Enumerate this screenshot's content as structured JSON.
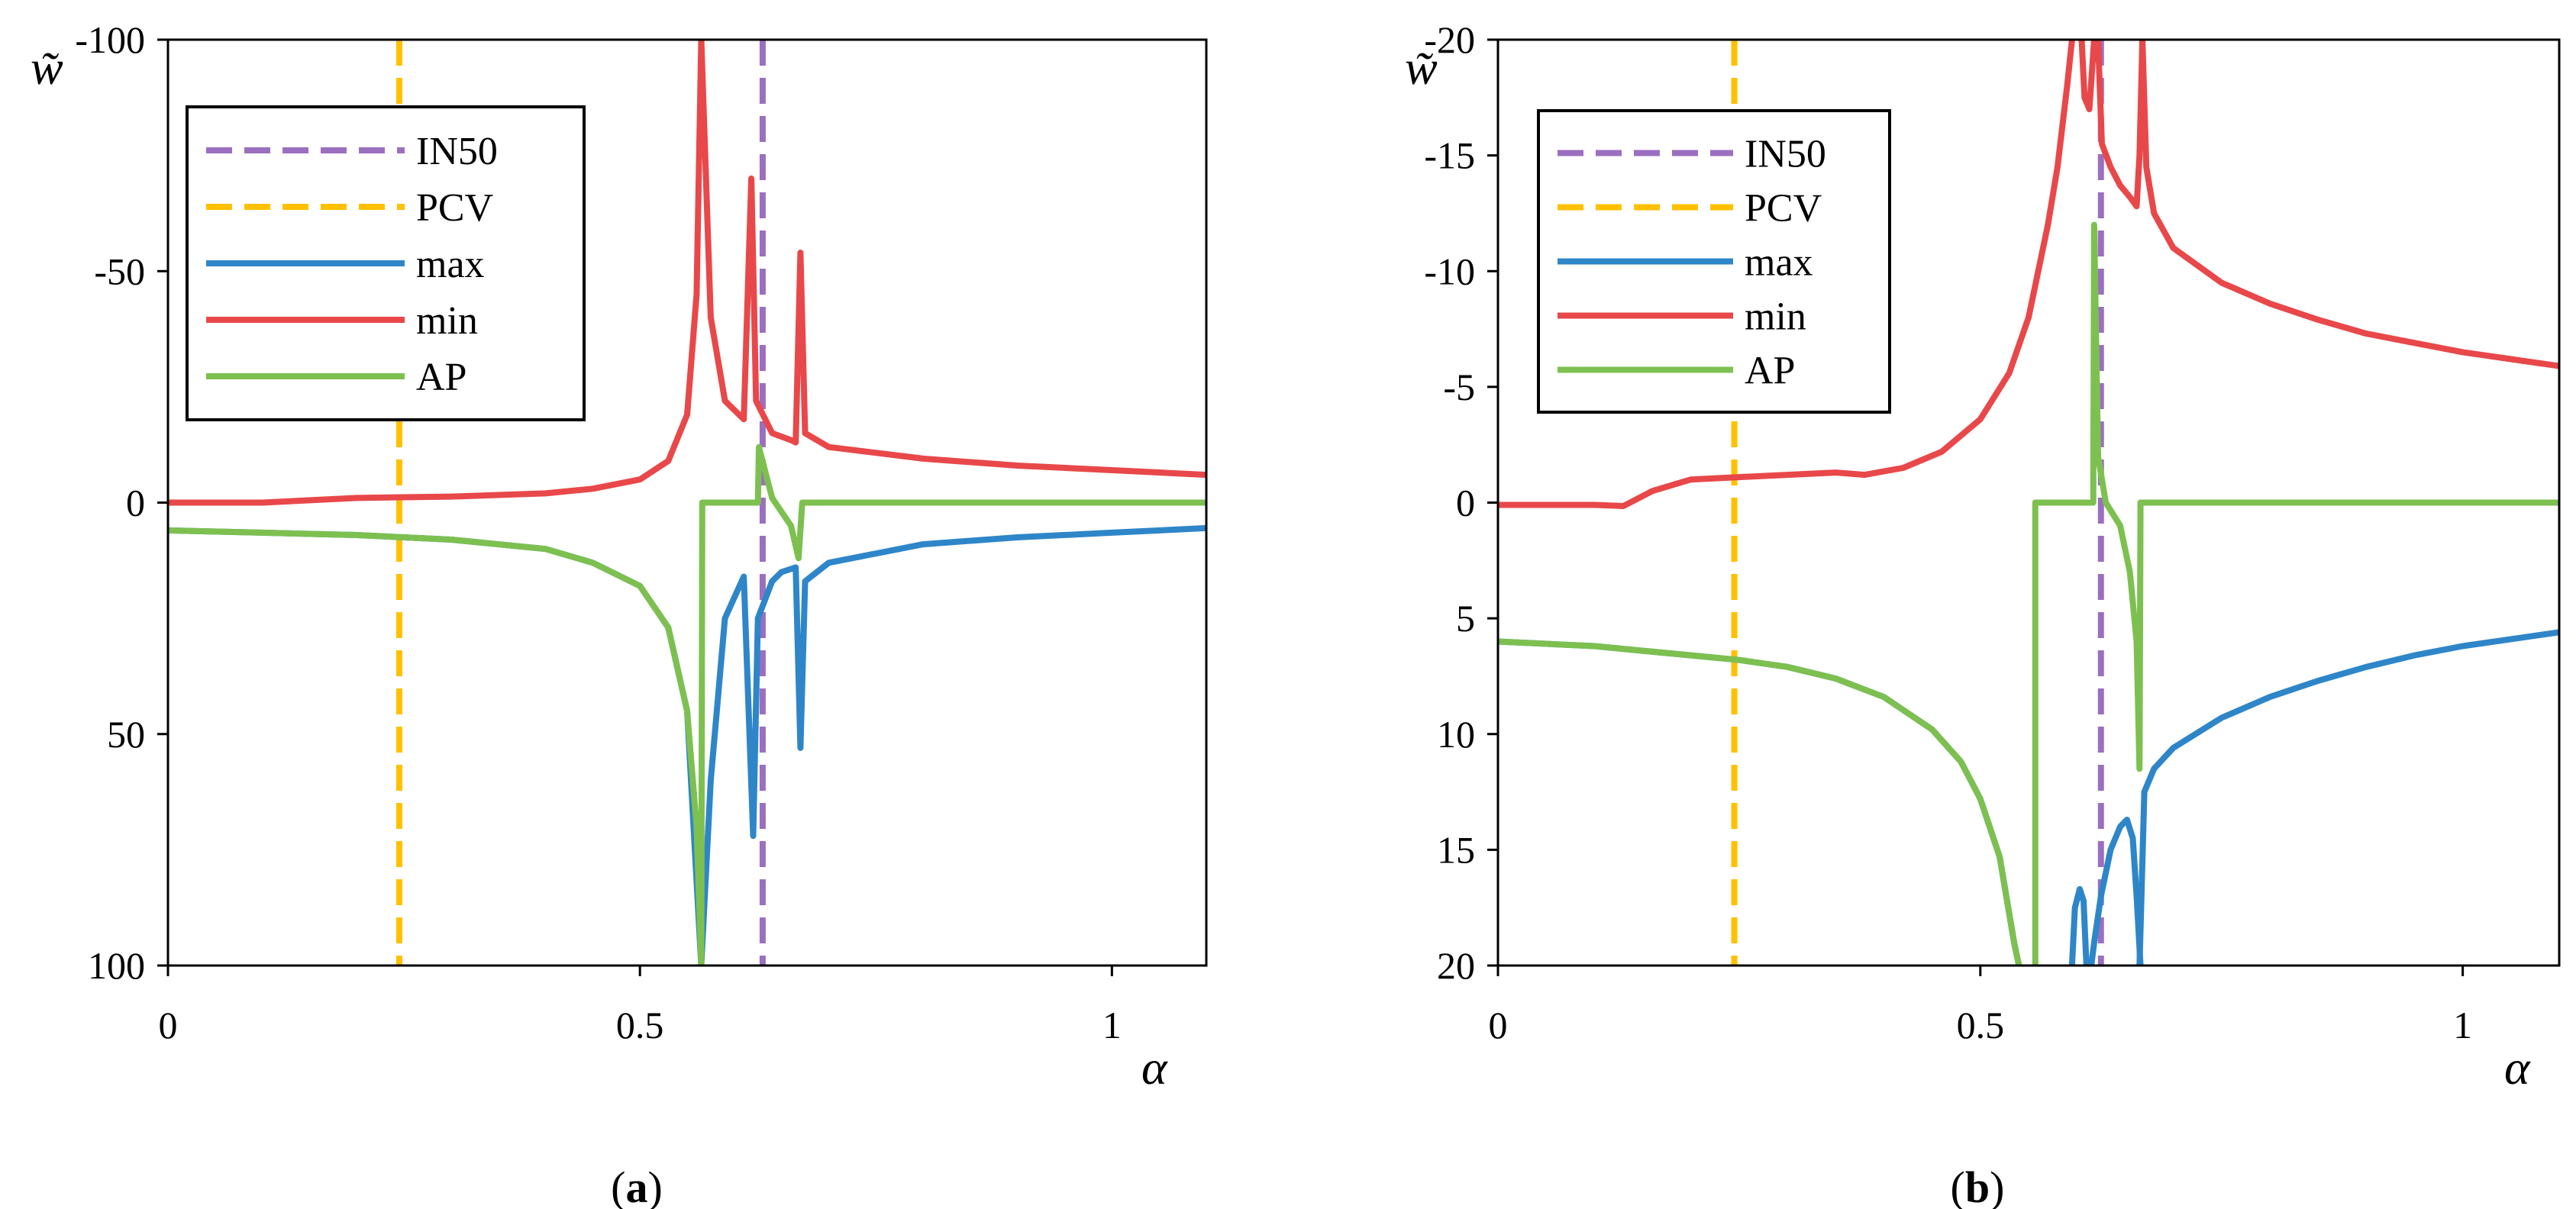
{
  "colors": {
    "IN50": "#9B6FC0",
    "PCV": "#FFC000",
    "max": "#2E86C9",
    "min": "#E8484A",
    "AP": "#7DC050"
  },
  "chart_data": [
    {
      "type": "line",
      "caption_open": "(",
      "caption_letter": "a",
      "caption_close": ")",
      "xlabel": "α",
      "ylabel": "w̃",
      "xlim": [
        0,
        1.1
      ],
      "ylim": [
        -100,
        100
      ],
      "y_inverted": true,
      "xticks": [
        0,
        0.5,
        1
      ],
      "xtick_labels": [
        "0",
        "0.5",
        "1"
      ],
      "yticks": [
        -100,
        -50,
        0,
        50,
        100
      ],
      "ytick_labels": [
        "-100",
        "-50",
        "0",
        "50",
        "100"
      ],
      "legend": [
        "IN50",
        "PCV",
        "max",
        "min",
        "AP"
      ],
      "legend_position": "top-left",
      "vlines": [
        {
          "name": "IN50",
          "x": 0.63
        },
        {
          "name": "PCV",
          "x": 0.245
        }
      ],
      "series": [
        {
          "name": "max",
          "points": [
            [
              0,
              6
            ],
            [
              0.1,
              6.5
            ],
            [
              0.2,
              7
            ],
            [
              0.3,
              8
            ],
            [
              0.4,
              10
            ],
            [
              0.45,
              13
            ],
            [
              0.5,
              18
            ],
            [
              0.53,
              27
            ],
            [
              0.55,
              45
            ],
            [
              0.565,
              100
            ],
            [
              0.575,
              60
            ],
            [
              0.59,
              25
            ],
            [
              0.61,
              16
            ],
            [
              0.62,
              72
            ],
            [
              0.625,
              25
            ],
            [
              0.64,
              17
            ],
            [
              0.65,
              15
            ],
            [
              0.665,
              14
            ],
            [
              0.67,
              53
            ],
            [
              0.675,
              17
            ],
            [
              0.7,
              13
            ],
            [
              0.8,
              9
            ],
            [
              0.9,
              7.5
            ],
            [
              1.0,
              6.5
            ],
            [
              1.1,
              5.5
            ]
          ]
        },
        {
          "name": "min",
          "points": [
            [
              0,
              0
            ],
            [
              0.1,
              0
            ],
            [
              0.2,
              -1
            ],
            [
              0.3,
              -1.3
            ],
            [
              0.4,
              -2
            ],
            [
              0.45,
              -3
            ],
            [
              0.5,
              -5
            ],
            [
              0.53,
              -9
            ],
            [
              0.55,
              -19
            ],
            [
              0.56,
              -45
            ],
            [
              0.565,
              -100
            ],
            [
              0.575,
              -40
            ],
            [
              0.59,
              -22
            ],
            [
              0.61,
              -18
            ],
            [
              0.618,
              -70
            ],
            [
              0.623,
              -22
            ],
            [
              0.64,
              -15
            ],
            [
              0.66,
              -13.5
            ],
            [
              0.665,
              -13
            ],
            [
              0.67,
              -54
            ],
            [
              0.675,
              -15
            ],
            [
              0.7,
              -12
            ],
            [
              0.8,
              -9.5
            ],
            [
              0.9,
              -8
            ],
            [
              1.0,
              -7
            ],
            [
              1.1,
              -6
            ]
          ]
        },
        {
          "name": "AP",
          "points": [
            [
              0,
              6
            ],
            [
              0.1,
              6.5
            ],
            [
              0.2,
              7
            ],
            [
              0.3,
              8
            ],
            [
              0.4,
              10
            ],
            [
              0.45,
              13
            ],
            [
              0.5,
              18
            ],
            [
              0.53,
              27
            ],
            [
              0.55,
              45
            ],
            [
              0.56,
              70
            ],
            [
              0.565,
              100
            ],
            [
              0.566,
              0
            ],
            [
              0.625,
              0
            ],
            [
              0.626,
              -12
            ],
            [
              0.64,
              -1
            ],
            [
              0.66,
              5
            ],
            [
              0.668,
              12
            ],
            [
              0.672,
              0
            ],
            [
              1.1,
              0
            ]
          ]
        }
      ]
    },
    {
      "type": "line",
      "caption_open": "(",
      "caption_letter": "b",
      "caption_close": ")",
      "xlabel": "α",
      "ylabel": "w̃",
      "xlim": [
        0,
        1.1
      ],
      "ylim": [
        -20,
        20
      ],
      "y_inverted": true,
      "xticks": [
        0,
        0.5,
        1
      ],
      "xtick_labels": [
        "0",
        "0.5",
        "1"
      ],
      "yticks": [
        -20,
        -15,
        -10,
        -5,
        0,
        5,
        10,
        15,
        20
      ],
      "ytick_labels": [
        "-20",
        "-15",
        "-10",
        "-5",
        "0",
        "5",
        "10",
        "15",
        "20"
      ],
      "legend": [
        "IN50",
        "PCV",
        "max",
        "min",
        "AP"
      ],
      "legend_position": "top-left",
      "vlines": [
        {
          "name": "IN50",
          "x": 0.625
        },
        {
          "name": "PCV",
          "x": 0.245
        }
      ],
      "series": [
        {
          "name": "max",
          "points": [
            [
              0,
              6
            ],
            [
              0.05,
              6.1
            ],
            [
              0.1,
              6.2
            ],
            [
              0.15,
              6.4
            ],
            [
              0.2,
              6.6
            ],
            [
              0.25,
              6.8
            ],
            [
              0.3,
              7.1
            ],
            [
              0.35,
              7.6
            ],
            [
              0.4,
              8.4
            ],
            [
              0.45,
              9.8
            ],
            [
              0.48,
              11.2
            ],
            [
              0.5,
              12.8
            ],
            [
              0.52,
              15.3
            ],
            [
              0.535,
              19
            ],
            [
              0.54,
              20
            ]
          ]
        },
        {
          "name": "max",
          "points": [
            [
              0.595,
              20
            ],
            [
              0.598,
              17.5
            ],
            [
              0.603,
              16.7
            ],
            [
              0.607,
              17.2
            ],
            [
              0.61,
              20
            ]
          ]
        },
        {
          "name": "max",
          "points": [
            [
              0.615,
              20
            ],
            [
              0.618,
              19
            ],
            [
              0.625,
              17
            ],
            [
              0.635,
              15
            ],
            [
              0.645,
              14
            ],
            [
              0.652,
              13.7
            ],
            [
              0.658,
              14.5
            ],
            [
              0.662,
              17
            ],
            [
              0.666,
              20
            ]
          ]
        },
        {
          "name": "max",
          "points": [
            [
              0.665,
              20
            ],
            [
              0.67,
              12.5
            ],
            [
              0.68,
              11.5
            ],
            [
              0.7,
              10.6
            ],
            [
              0.75,
              9.3
            ],
            [
              0.8,
              8.4
            ],
            [
              0.85,
              7.7
            ],
            [
              0.9,
              7.1
            ],
            [
              0.95,
              6.6
            ],
            [
              1.0,
              6.2
            ],
            [
              1.05,
              5.9
            ],
            [
              1.1,
              5.6
            ]
          ]
        },
        {
          "name": "min",
          "points": [
            [
              0,
              0.1
            ],
            [
              0.1,
              0.1
            ],
            [
              0.13,
              0.15
            ],
            [
              0.16,
              -0.5
            ],
            [
              0.2,
              -1.0
            ],
            [
              0.25,
              -1.1
            ],
            [
              0.3,
              -1.2
            ],
            [
              0.35,
              -1.3
            ],
            [
              0.38,
              -1.2
            ],
            [
              0.42,
              -1.5
            ],
            [
              0.46,
              -2.2
            ],
            [
              0.5,
              -3.6
            ],
            [
              0.53,
              -5.6
            ],
            [
              0.55,
              -8
            ],
            [
              0.57,
              -12
            ],
            [
              0.58,
              -14.5
            ],
            [
              0.59,
              -18
            ],
            [
              0.595,
              -20
            ]
          ]
        },
        {
          "name": "min",
          "points": [
            [
              0.605,
              -20
            ],
            [
              0.608,
              -17.5
            ],
            [
              0.613,
              -17
            ],
            [
              0.618,
              -20
            ]
          ]
        },
        {
          "name": "min",
          "points": [
            [
              0.622,
              -20
            ],
            [
              0.626,
              -15.5
            ],
            [
              0.635,
              -14.5
            ],
            [
              0.645,
              -13.7
            ],
            [
              0.655,
              -13.2
            ],
            [
              0.662,
              -12.8
            ],
            [
              0.665,
              -15
            ],
            [
              0.668,
              -20
            ]
          ]
        },
        {
          "name": "min",
          "points": [
            [
              0.668,
              -20
            ],
            [
              0.672,
              -14.5
            ],
            [
              0.68,
              -12.5
            ],
            [
              0.7,
              -11
            ],
            [
              0.75,
              -9.5
            ],
            [
              0.8,
              -8.6
            ],
            [
              0.85,
              -7.9
            ],
            [
              0.9,
              -7.3
            ],
            [
              0.95,
              -6.9
            ],
            [
              1.0,
              -6.5
            ],
            [
              1.05,
              -6.2
            ],
            [
              1.1,
              -5.9
            ]
          ]
        },
        {
          "name": "AP",
          "points": [
            [
              0,
              6
            ],
            [
              0.05,
              6.1
            ],
            [
              0.1,
              6.2
            ],
            [
              0.15,
              6.4
            ],
            [
              0.2,
              6.6
            ],
            [
              0.25,
              6.8
            ],
            [
              0.3,
              7.1
            ],
            [
              0.35,
              7.6
            ],
            [
              0.4,
              8.4
            ],
            [
              0.45,
              9.8
            ],
            [
              0.48,
              11.2
            ],
            [
              0.5,
              12.8
            ],
            [
              0.52,
              15.3
            ],
            [
              0.535,
              19
            ],
            [
              0.54,
              20
            ]
          ]
        },
        {
          "name": "AP",
          "points": [
            [
              0.557,
              20
            ],
            [
              0.557,
              0
            ],
            [
              0.617,
              0
            ],
            [
              0.618,
              -12
            ],
            [
              0.622,
              -2
            ],
            [
              0.63,
              0
            ],
            [
              0.645,
              1
            ],
            [
              0.655,
              3
            ],
            [
              0.662,
              6
            ],
            [
              0.665,
              11.5
            ],
            [
              0.666,
              0
            ],
            [
              1.1,
              0
            ]
          ]
        }
      ]
    }
  ]
}
